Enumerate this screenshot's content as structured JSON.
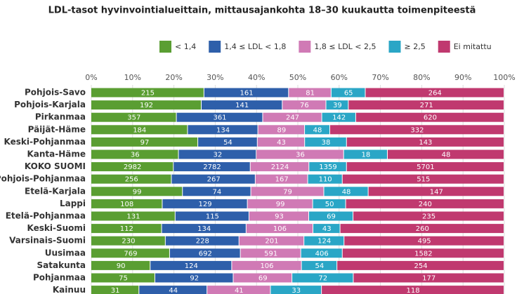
{
  "chart_data": {
    "type": "bar",
    "orientation": "horizontal",
    "stacked": "percent",
    "title": "LDL-tasot hyvinvointialueittain, mittausajankohta 18–30 kuukautta toimenpiteestä",
    "categories": [
      "Pohjois-Savo",
      "Pohjois-Karjala",
      "Pirkanmaa",
      "Päijät-Häme",
      "Keski-Pohjanmaa",
      "Kanta-Häme",
      "KOKO SUOMI",
      "Pohjois-Pohjanmaa",
      "Etelä-Karjala",
      "Lappi",
      "Etelä-Pohjanmaa",
      "Keski-Suomi",
      "Varsinais-Suomi",
      "Uusimaa",
      "Satakunta",
      "Pohjanmaa",
      "Kainuu"
    ],
    "series": [
      {
        "name": "< 1,4",
        "color": "#5a9e32",
        "values": [
          215,
          192,
          357,
          184,
          97,
          36,
          2982,
          256,
          99,
          108,
          131,
          112,
          230,
          769,
          90,
          75,
          31
        ]
      },
      {
        "name": "1,4 ≤ LDL < 1,8",
        "color": "#2e5faa",
        "values": [
          161,
          141,
          361,
          134,
          54,
          32,
          2782,
          267,
          74,
          129,
          115,
          134,
          228,
          692,
          124,
          92,
          44
        ]
      },
      {
        "name": "1,8 ≤ LDL < 2,5",
        "color": "#d07ab5",
        "values": [
          81,
          76,
          247,
          89,
          43,
          36,
          2124,
          167,
          79,
          99,
          93,
          106,
          201,
          591,
          106,
          69,
          41
        ]
      },
      {
        "name": "≥ 2,5",
        "color": "#2aa6c6",
        "values": [
          65,
          39,
          142,
          48,
          38,
          18,
          1359,
          110,
          48,
          50,
          69,
          43,
          124,
          406,
          54,
          72,
          33
        ]
      },
      {
        "name": "Ei mitattu",
        "color": "#c0396f",
        "values": [
          264,
          271,
          620,
          332,
          143,
          48,
          5701,
          515,
          147,
          240,
          235,
          260,
          495,
          1582,
          254,
          177,
          118
        ]
      }
    ],
    "xlim": [
      0,
      100
    ],
    "xticks": [
      {
        "value": 0,
        "label": "0%"
      },
      {
        "value": 10,
        "label": "10%"
      },
      {
        "value": 20,
        "label": "20%"
      },
      {
        "value": 30,
        "label": "30%"
      },
      {
        "value": 40,
        "label": "40%"
      },
      {
        "value": 50,
        "label": "50%"
      },
      {
        "value": 60,
        "label": "60%"
      },
      {
        "value": 70,
        "label": "70%"
      },
      {
        "value": 80,
        "label": "80%"
      },
      {
        "value": 90,
        "label": "90%"
      },
      {
        "value": 100,
        "label": "100%"
      }
    ],
    "grid": true,
    "legend": "top"
  }
}
